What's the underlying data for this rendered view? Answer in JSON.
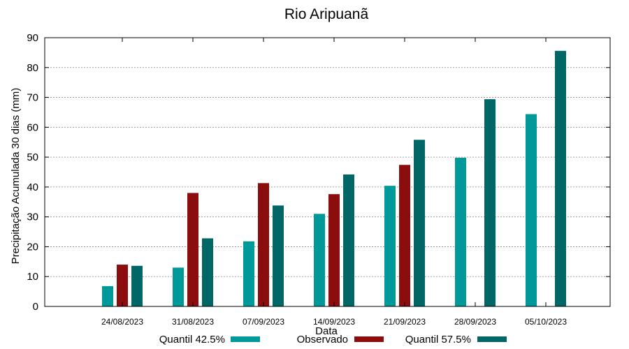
{
  "chart_data": {
    "type": "bar",
    "title": "Rio Aripuanã",
    "xlabel": "Data",
    "ylabel": "Precipitação Acumulada 30 dias (mm)",
    "ylim": [
      0,
      90
    ],
    "yticks": [
      0,
      10,
      20,
      30,
      40,
      50,
      60,
      70,
      80,
      90
    ],
    "grid": true,
    "legend_position": "bottom",
    "categories": [
      "24/08/2023",
      "31/08/2023",
      "07/09/2023",
      "14/09/2023",
      "21/09/2023",
      "28/09/2023",
      "05/10/2023"
    ],
    "series": [
      {
        "name": "Quantil 42.5%",
        "color": "#009999",
        "values": [
          6.8,
          13.0,
          21.8,
          31.0,
          40.4,
          49.8,
          64.4
        ]
      },
      {
        "name": "Observado",
        "color": "#8b0d0d",
        "values": [
          14.0,
          38.0,
          41.3,
          37.6,
          47.4,
          null,
          null
        ]
      },
      {
        "name": "Quantil 57.5%",
        "color": "#006666",
        "values": [
          13.6,
          22.8,
          33.8,
          44.2,
          55.8,
          69.4,
          85.6
        ]
      }
    ]
  }
}
